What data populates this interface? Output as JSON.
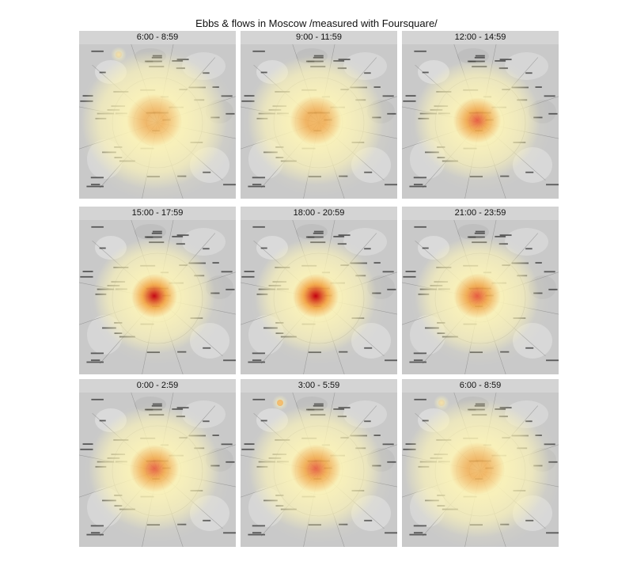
{
  "title": "Ebbs & flows in Moscow /measured with Foursquare/",
  "colors": {
    "map_base": "#c9c9c9",
    "strip": "#d4d4d4",
    "heat_low": "#fff6b8",
    "heat_mid": "#f7a23a",
    "heat_high": "#c40010"
  },
  "panels": [
    {
      "label": "6:00 - 8:59",
      "intensity": 0.25,
      "spread": 1.0,
      "outlier": true
    },
    {
      "label": "9:00 - 11:59",
      "intensity": 0.45,
      "spread": 0.8,
      "outlier": false
    },
    {
      "label": "12:00 - 14:59",
      "intensity": 0.7,
      "spread": 0.6,
      "outlier": false
    },
    {
      "label": "15:00 - 17:59",
      "intensity": 0.95,
      "spread": 0.5,
      "outlier": false
    },
    {
      "label": "18:00 - 20:59",
      "intensity": 1.0,
      "spread": 0.5,
      "outlier": false
    },
    {
      "label": "21:00 - 23:59",
      "intensity": 0.75,
      "spread": 0.55,
      "outlier": false
    },
    {
      "label": "0:00 - 2:59",
      "intensity": 0.65,
      "spread": 0.7,
      "outlier": false
    },
    {
      "label": "3:00 - 5:59",
      "intensity": 0.65,
      "spread": 0.75,
      "outlier": true
    },
    {
      "label": "6:00 - 8:59",
      "intensity": 0.3,
      "spread": 1.0,
      "outlier": true
    }
  ]
}
